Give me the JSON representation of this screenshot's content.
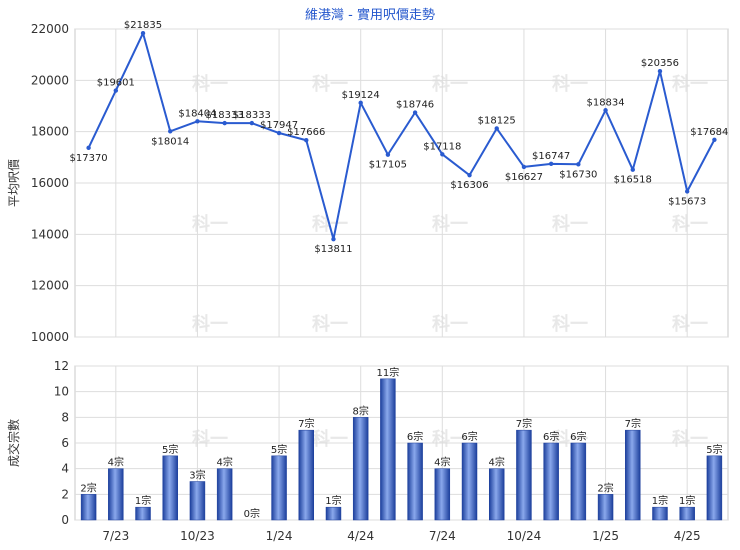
{
  "chart_data": [
    {
      "type": "line",
      "title": "維港灣 - 實用呎價走勢",
      "ylabel": "平均呎價",
      "ylim": [
        10000,
        22000
      ],
      "yticks": [
        10000,
        12000,
        14000,
        16000,
        18000,
        20000,
        22000
      ],
      "x_tick_labels": [
        "7/23",
        "10/23",
        "1/24",
        "4/24",
        "7/24",
        "10/24",
        "1/25",
        "4/25"
      ],
      "grid": true,
      "series": [
        {
          "values": [
            17370,
            19601,
            21835,
            18014,
            18404,
            18333,
            18333,
            17947,
            17666,
            13811,
            19124,
            17105,
            18746,
            17118,
            16306,
            18125,
            16627,
            16747,
            16730,
            18834,
            16518,
            20356,
            15673,
            17684
          ],
          "labels": [
            "$17370",
            "$19601",
            "$21835",
            "$18014",
            "$18404",
            "$18333",
            "$18333",
            "$17947",
            "$17666",
            "$13811",
            "$19124",
            "$17105",
            "$18746",
            "$17118",
            "$16306",
            "$18125",
            "$16627",
            "$16747",
            "$16730",
            "$18834",
            "$16518",
            "$20356",
            "$15673",
            "$17684"
          ],
          "color": "#2a5bd0"
        }
      ]
    },
    {
      "type": "bar",
      "ylabel": "成交宗數",
      "ylim": [
        0,
        12
      ],
      "yticks": [
        0,
        2,
        4,
        6,
        8,
        10,
        12
      ],
      "x_tick_labels": [
        "7/23",
        "10/23",
        "1/24",
        "4/24",
        "7/24",
        "10/24",
        "1/25",
        "4/25"
      ],
      "grid": true,
      "series": [
        {
          "values": [
            2,
            4,
            1,
            5,
            3,
            4,
            0,
            5,
            7,
            1,
            8,
            11,
            6,
            4,
            6,
            4,
            7,
            6,
            6,
            2,
            7,
            1,
            1,
            5
          ],
          "labels": [
            "2宗",
            "4宗",
            "1宗",
            "5宗",
            "3宗",
            "4宗",
            "0宗",
            "5宗",
            "7宗",
            "1宗",
            "8宗",
            "11宗",
            "6宗",
            "4宗",
            "6宗",
            "4宗",
            "7宗",
            "6宗",
            "6宗",
            "2宗",
            "7宗",
            "1宗",
            "1宗",
            "5宗"
          ],
          "color": "#2a5bd0"
        }
      ]
    }
  ],
  "watermark": "科一"
}
